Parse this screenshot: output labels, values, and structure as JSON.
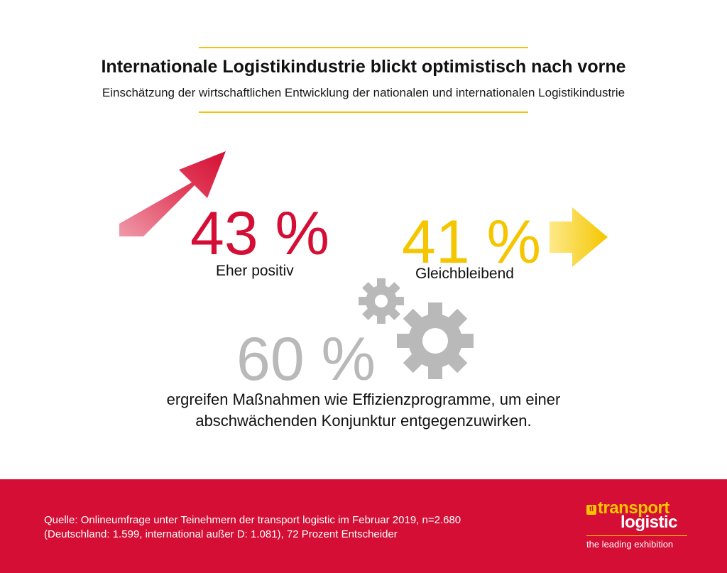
{
  "colors": {
    "red": "#d40e34",
    "yellow": "#f5c600",
    "gray": "#b9b9b9",
    "rule_yellow": "#f4c20d"
  },
  "header": {
    "title": "Internationale Logistikindustrie blickt optimistisch nach vorne",
    "subtitle": "Einschätzung der wirtschaftlichen Entwicklung der nationalen und internationalen Logistikindustrie"
  },
  "stats": [
    {
      "value": "43 %",
      "label": "Eher positiv",
      "icon": "arrow-up-right-icon"
    },
    {
      "value": "41 %",
      "label": "Gleichbleibend",
      "icon": "arrow-right-icon"
    },
    {
      "value": "60 %",
      "label": "ergreifen Maßnahmen wie Effizienzprogramme, um einer abschwächenden Konjunktur entgegenzuwirken.",
      "icon": "gears-icon"
    }
  ],
  "footer": {
    "source_line1": "Quelle: Onlineumfrage unter Teinehmern der transport logistic im Februar 2019, n=2.680",
    "source_line2": "(Deutschland: 1.599, international außer D: 1.081), 72 Prozent Entscheider"
  },
  "logo": {
    "mark": "tl",
    "word1": "transport",
    "word2": "logistic",
    "tagline": "the leading exhibition"
  }
}
